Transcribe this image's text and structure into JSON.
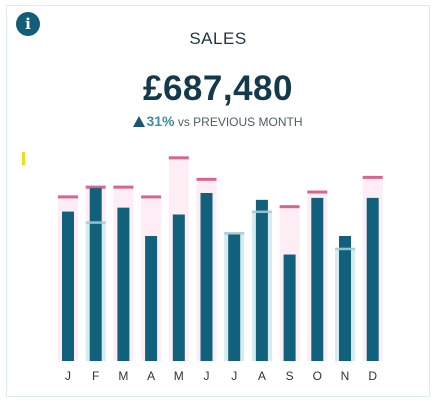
{
  "card": {
    "info_icon": "info-icon",
    "info_glyph": "i",
    "title": "SALES",
    "value": "£687,480",
    "delta_pct": "31%",
    "delta_suffix": " vs PREVIOUS MONTH"
  },
  "colors": {
    "actual": "#11617c",
    "previous_year": "#d6edf0",
    "target_fill": "#fdeef5",
    "target_line": "#d9648e",
    "highlight_marker": "#f1de1b"
  },
  "chart_data": {
    "type": "bar",
    "categories": [
      "J",
      "F",
      "M",
      "A",
      "M",
      "J",
      "J",
      "A",
      "S",
      "O",
      "N",
      "D"
    ],
    "ylim": [
      0,
      215
    ],
    "series": [
      {
        "values": [
          168,
          178,
          178,
          168,
          208,
          186,
          0,
          0,
          158,
          173,
          0,
          188
        ]
      },
      {
        "values": [
          153,
          177,
          157,
          128,
          150,
          172,
          130,
          165,
          109,
          167,
          128,
          167
        ]
      },
      {
        "values": [
          0,
          142,
          0,
          0,
          0,
          0,
          131,
          153,
          0,
          0,
          115,
          0
        ]
      }
    ]
  }
}
